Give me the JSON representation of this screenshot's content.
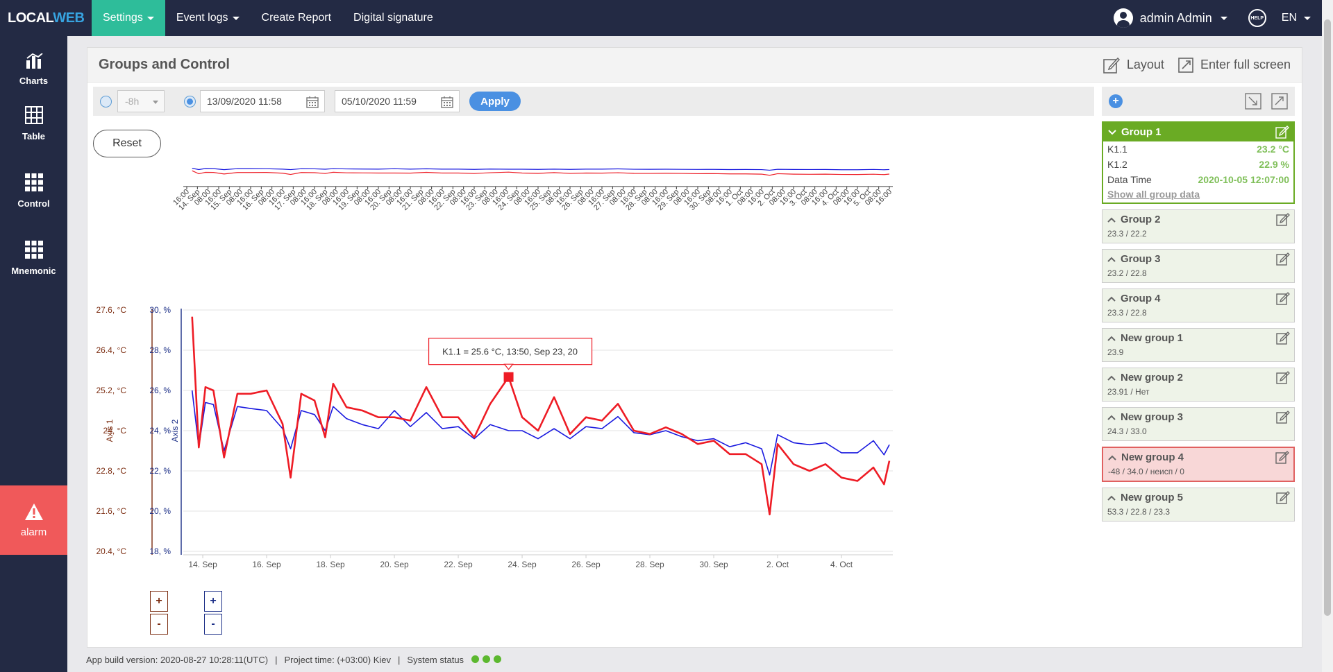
{
  "app": {
    "logo_local": "LOCAL",
    "logo_web": "WEB"
  },
  "nav": {
    "settings": "Settings",
    "event_logs": "Event logs",
    "create_report": "Create Report",
    "digital_signature": "Digital signature",
    "user": "admin Admin",
    "help": "HELP",
    "lang": "EN"
  },
  "sidebar": {
    "charts": "Charts",
    "table": "Table",
    "control": "Control",
    "mnemonic": "Mnemonic",
    "alarm": "alarm"
  },
  "page": {
    "title": "Groups and Control",
    "layout": "Layout",
    "fullscreen": "Enter full screen"
  },
  "filter": {
    "range": "-8h",
    "from": "13/09/2020 11:58",
    "to": "05/10/2020 11:59",
    "apply": "Apply",
    "reset": "Reset"
  },
  "colors": {
    "k11": "#ee1c25",
    "k12": "#1a1adf",
    "axis1": "#7b2c10",
    "axis2": "#1a2d86",
    "group_open": "#6aab24",
    "alert": "#e06060"
  },
  "chart_data": {
    "type": "line",
    "x_range": [
      "2020-09-13 11:58",
      "2020-10-05 11:59"
    ],
    "series": [
      {
        "name": "K1.1",
        "axis": "Axis 1",
        "unit": "°C",
        "x": [
          "2020-09-13 16:00",
          "2020-09-13 21:00",
          "2020-09-14 02:00",
          "2020-09-14 08:00",
          "2020-09-14 16:00",
          "2020-09-15 02:00",
          "2020-09-15 12:00",
          "2020-09-16 00:00",
          "2020-09-16 12:00",
          "2020-09-16 18:00",
          "2020-09-17 02:00",
          "2020-09-17 12:00",
          "2020-09-17 20:00",
          "2020-09-18 02:00",
          "2020-09-18 12:00",
          "2020-09-19 00:00",
          "2020-09-19 12:00",
          "2020-09-20 00:00",
          "2020-09-20 12:00",
          "2020-09-21 00:00",
          "2020-09-21 12:00",
          "2020-09-22 00:00",
          "2020-09-22 12:00",
          "2020-09-23 00:00",
          "2020-09-23 13:50",
          "2020-09-24 00:00",
          "2020-09-24 12:00",
          "2020-09-25 00:00",
          "2020-09-25 12:00",
          "2020-09-26 00:00",
          "2020-09-26 12:00",
          "2020-09-27 00:00",
          "2020-09-27 12:00",
          "2020-09-28 00:00",
          "2020-09-28 12:00",
          "2020-09-29 00:00",
          "2020-09-29 12:00",
          "2020-09-30 00:00",
          "2020-09-30 12:00",
          "2020-10-01 00:00",
          "2020-10-01 12:00",
          "2020-10-01 18:00",
          "2020-10-02 00:00",
          "2020-10-02 12:00",
          "2020-10-03 00:00",
          "2020-10-03 12:00",
          "2020-10-04 00:00",
          "2020-10-04 12:00",
          "2020-10-05 00:00",
          "2020-10-05 08:00",
          "2020-10-05 11:59"
        ],
        "values": [
          27.4,
          23.5,
          25.3,
          25.2,
          23.2,
          25.1,
          25.1,
          25.2,
          24.2,
          22.6,
          25.1,
          24.9,
          23.8,
          25.4,
          24.7,
          24.6,
          24.4,
          24.4,
          24.3,
          25.3,
          24.4,
          24.4,
          23.8,
          24.8,
          25.6,
          24.4,
          24.0,
          25.0,
          23.9,
          24.4,
          24.3,
          24.8,
          24.0,
          23.9,
          24.1,
          23.9,
          23.6,
          23.7,
          23.3,
          23.3,
          23.0,
          21.5,
          23.6,
          23.0,
          22.8,
          23.0,
          22.6,
          22.5,
          22.9,
          22.4,
          23.1
        ]
      },
      {
        "name": "K1.2",
        "axis": "Axis 2",
        "unit": "%",
        "x": [
          "2020-09-13 16:00",
          "2020-09-13 21:00",
          "2020-09-14 02:00",
          "2020-09-14 08:00",
          "2020-09-14 16:00",
          "2020-09-15 02:00",
          "2020-09-15 12:00",
          "2020-09-16 00:00",
          "2020-09-16 12:00",
          "2020-09-16 18:00",
          "2020-09-17 02:00",
          "2020-09-17 12:00",
          "2020-09-17 20:00",
          "2020-09-18 02:00",
          "2020-09-18 12:00",
          "2020-09-19 00:00",
          "2020-09-19 12:00",
          "2020-09-20 00:00",
          "2020-09-20 12:00",
          "2020-09-21 00:00",
          "2020-09-21 12:00",
          "2020-09-22 00:00",
          "2020-09-22 12:00",
          "2020-09-23 00:00",
          "2020-09-23 13:50",
          "2020-09-24 00:00",
          "2020-09-24 12:00",
          "2020-09-25 00:00",
          "2020-09-25 12:00",
          "2020-09-26 00:00",
          "2020-09-26 12:00",
          "2020-09-27 00:00",
          "2020-09-27 12:00",
          "2020-09-28 00:00",
          "2020-09-28 12:00",
          "2020-09-29 00:00",
          "2020-09-29 12:00",
          "2020-09-30 00:00",
          "2020-09-30 12:00",
          "2020-10-01 00:00",
          "2020-10-01 12:00",
          "2020-10-01 18:00",
          "2020-10-02 00:00",
          "2020-10-02 12:00",
          "2020-10-03 00:00",
          "2020-10-03 12:00",
          "2020-10-04 00:00",
          "2020-10-04 12:00",
          "2020-10-05 00:00",
          "2020-10-05 08:00",
          "2020-10-05 11:59"
        ],
        "values": [
          26.0,
          23.2,
          25.4,
          25.3,
          23.0,
          25.2,
          25.1,
          25.0,
          24.1,
          23.1,
          25.0,
          24.8,
          24.0,
          25.2,
          24.6,
          24.3,
          24.1,
          25.0,
          24.2,
          24.9,
          24.1,
          24.2,
          23.6,
          24.3,
          24.0,
          24.0,
          23.6,
          24.1,
          23.6,
          24.2,
          24.1,
          24.7,
          23.9,
          23.8,
          24.0,
          23.7,
          23.5,
          23.6,
          23.2,
          23.4,
          23.1,
          21.8,
          23.8,
          23.4,
          23.3,
          23.4,
          22.9,
          22.9,
          23.5,
          22.8,
          23.3
        ]
      }
    ],
    "axes": [
      {
        "name": "Axis 1",
        "unit": "°C",
        "ticks": [
          "27.6, °C",
          "26.4, °C",
          "25.2, °C",
          "24, °C",
          "22.8, °C",
          "21.6, °C",
          "20.4, °C"
        ],
        "range": [
          20.4,
          27.6
        ]
      },
      {
        "name": "Axis 2",
        "unit": "%",
        "ticks": [
          "30, %",
          "28, %",
          "26, %",
          "24, %",
          "22, %",
          "20, %",
          "18, %"
        ],
        "range": [
          18,
          30
        ]
      }
    ],
    "x_ticks": [
      "14. Sep",
      "16. Sep",
      "18. Sep",
      "20. Sep",
      "22. Sep",
      "24. Sep",
      "26. Sep",
      "28. Sep",
      "30. Sep",
      "2. Oct",
      "4. Oct"
    ],
    "navigator_ticks": [
      "16:00",
      "14. Sep",
      "08:00",
      "16:00",
      "15. Sep",
      "08:00",
      "16:00",
      "16. Sep",
      "08:00",
      "16:00",
      "17. Sep",
      "08:00",
      "16:00",
      "18. Sep",
      "08:00",
      "16:00",
      "19. Sep",
      "08:00",
      "16:00",
      "20. Sep",
      "08:00",
      "16:00",
      "21. Sep",
      "08:00",
      "16:00",
      "22. Sep",
      "08:00",
      "16:00",
      "23. Sep",
      "08:00",
      "16:00",
      "24. Sep",
      "08:00",
      "16:00",
      "25. Sep",
      "08:00",
      "16:00",
      "26. Sep",
      "08:00",
      "16:00",
      "27. Sep",
      "08:00",
      "16:00",
      "28. Sep",
      "08:00",
      "16:00",
      "29. Sep",
      "08:00",
      "16:00",
      "30. Sep",
      "08:00",
      "16:00",
      "1. Oct",
      "08:00",
      "16:00",
      "2. Oct",
      "08:00",
      "16:00",
      "3. Oct",
      "08:00",
      "16:00",
      "4. Oct",
      "08:00",
      "16:00",
      "5. Oct",
      "08:00",
      "16:00"
    ],
    "tooltip": "K1.1 = 25.6 °C, 13:50, Sep 23, 20",
    "legend": [
      "K1.1",
      "K1.2"
    ],
    "grid": true,
    "legend_position": "bottom-left"
  },
  "zoom": {
    "plus": "+",
    "minus": "-"
  },
  "groups": [
    {
      "name": "Group 1",
      "state": "open",
      "rows": [
        {
          "label": "K1.1",
          "value": "23.2 °C"
        },
        {
          "label": "K1.2",
          "value": "22.9 %"
        },
        {
          "label": "Data Time",
          "value": "2020-10-05 12:07:00"
        }
      ],
      "link": "Show all group data"
    },
    {
      "name": "Group 2",
      "summary": "23.3 / 22.2"
    },
    {
      "name": "Group 3",
      "summary": "23.2 / 22.8"
    },
    {
      "name": "Group 4",
      "summary": "23.3 / 22.8"
    },
    {
      "name": "New group 1",
      "summary": "23.9"
    },
    {
      "name": "New group 2",
      "summary": "23.91 / Нет"
    },
    {
      "name": "New group 3",
      "summary": "24.3 / 33.0"
    },
    {
      "name": "New group 4",
      "summary": "-48 / 34.0 / неисп / 0",
      "state": "alert"
    },
    {
      "name": "New group 5",
      "summary": "53.3 / 22.8 / 23.3"
    }
  ],
  "status": {
    "build": "App build version: 2020-08-27 10:28:11(UTC)",
    "sep": "|",
    "project_time": "Project time: (+03:00) Kiev",
    "system_status": "System status"
  }
}
